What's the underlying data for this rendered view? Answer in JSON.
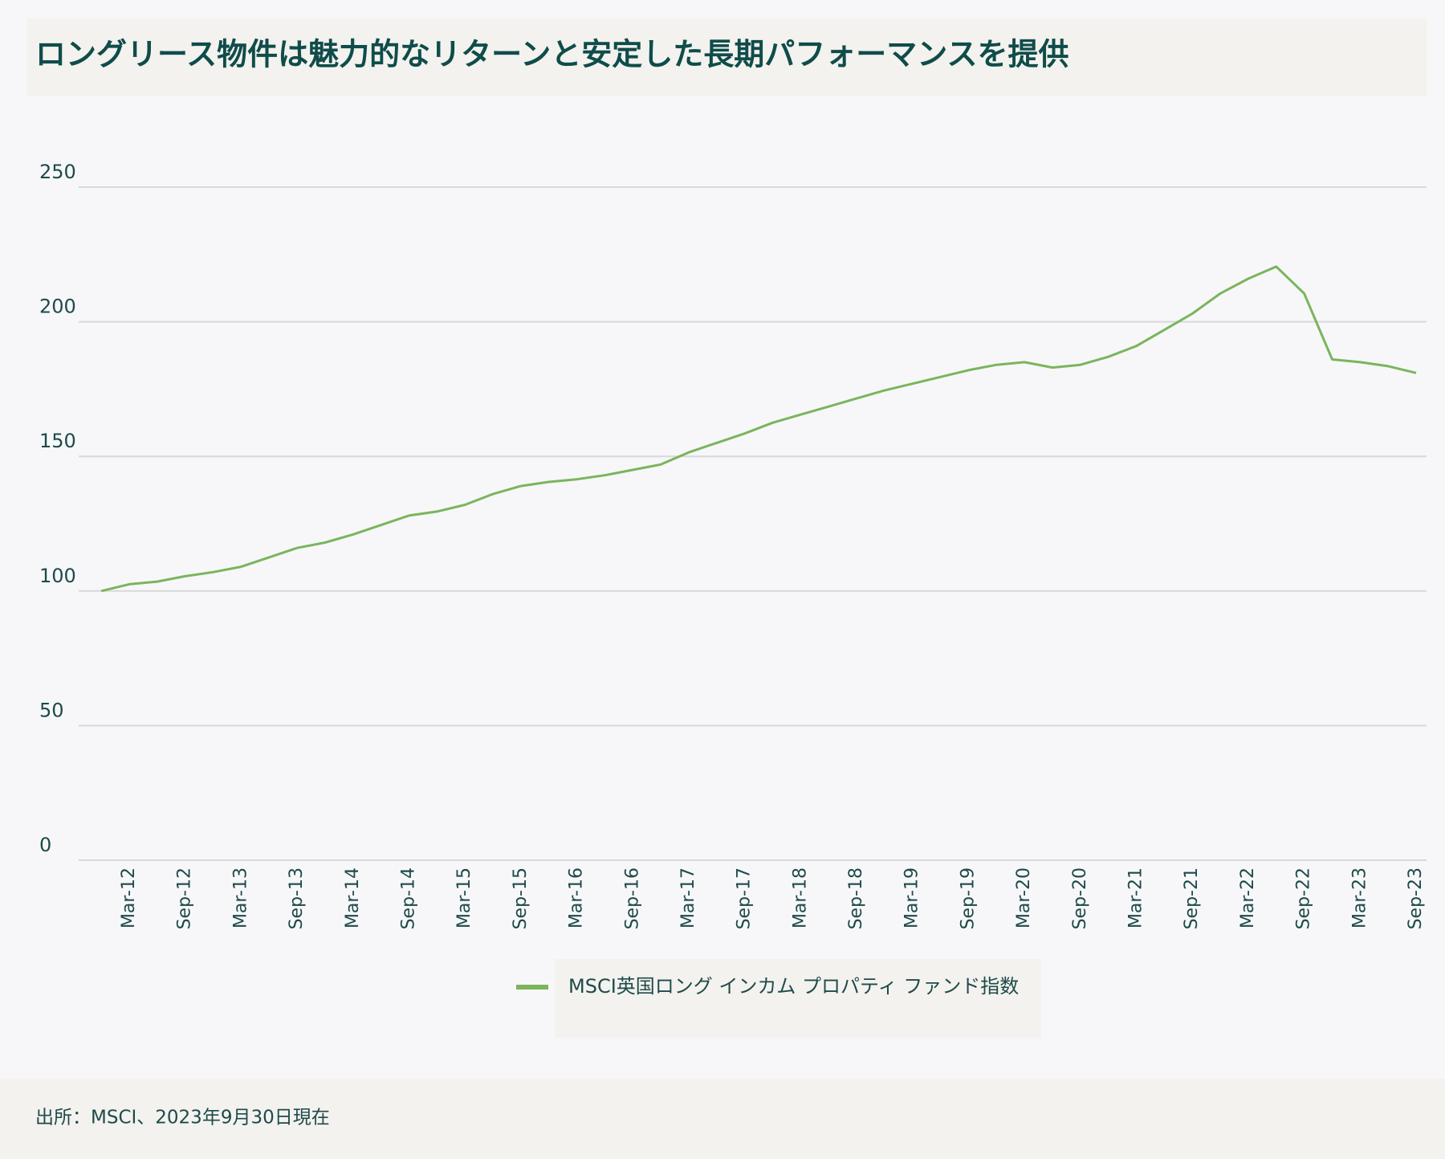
{
  "chart_data": {
    "type": "line",
    "title": "ロングリース物件は魅力的なリターンと安定した長期パフォーマンスを提供",
    "categories": [
      null,
      "Mar-12",
      null,
      "Sep-12",
      null,
      "Mar-13",
      null,
      "Sep-13",
      null,
      "Mar-14",
      null,
      "Sep-14",
      null,
      "Mar-15",
      null,
      "Sep-15",
      null,
      "Mar-16",
      null,
      "Sep-16",
      null,
      "Mar-17",
      null,
      "Sep-17",
      null,
      "Mar-18",
      null,
      "Sep-18",
      null,
      "Mar-19",
      null,
      "Sep-19",
      null,
      "Mar-20",
      null,
      "Sep-20",
      null,
      "Mar-21",
      null,
      "Sep-21",
      null,
      "Mar-22",
      null,
      "Sep-22",
      null,
      "Mar-23",
      null,
      "Sep-23"
    ],
    "series": [
      {
        "name": "MSCI英国ロング インカム プロパティ ファンド指数",
        "color": "#7ab55c",
        "values": [
          100,
          102.5,
          103.5,
          105.5,
          107,
          109,
          112.5,
          116,
          118,
          121,
          124.5,
          128,
          129.5,
          132,
          136,
          139,
          140.5,
          141.5,
          143,
          145,
          147,
          151.5,
          155,
          158.5,
          162.5,
          165.5,
          168.5,
          171.5,
          174.5,
          177,
          179.5,
          182,
          184,
          185,
          183,
          184,
          187,
          191,
          197,
          203,
          210.5,
          216,
          220.5,
          210.5,
          186,
          185,
          183.5,
          181
        ]
      }
    ],
    "ylim": [
      0,
      250
    ],
    "yticks": [
      0,
      50,
      100,
      150,
      200,
      250
    ],
    "grid": true,
    "source": "出所：MSCI、2023年9月30日現在"
  }
}
